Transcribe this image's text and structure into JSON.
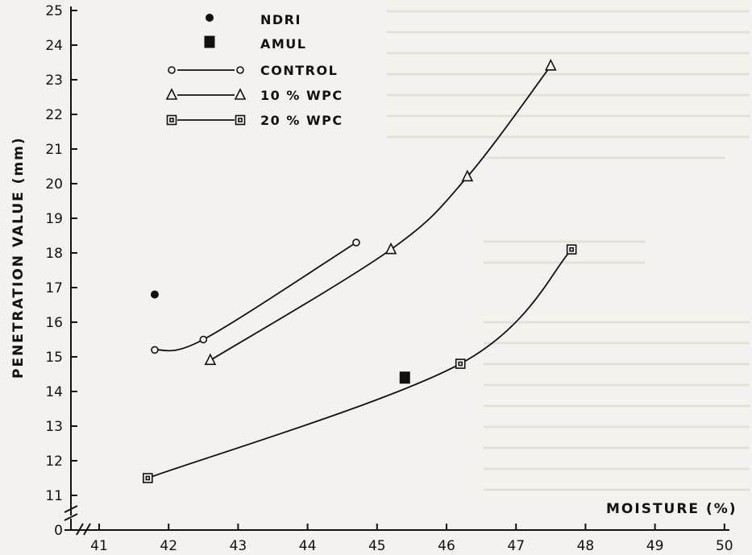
{
  "chart_data": {
    "type": "line",
    "xlabel": "MOISTURE (%)",
    "ylabel": "PENETRATION VALUE (mm)",
    "xlim": [
      41,
      50
    ],
    "ylim": [
      11,
      25
    ],
    "x_ticks": [
      "41",
      "42",
      "43",
      "44",
      "45",
      "46",
      "47",
      "48",
      "49",
      "50"
    ],
    "y_ticks": [
      "11",
      "12",
      "13",
      "14",
      "15",
      "16",
      "17",
      "18",
      "19",
      "20",
      "21",
      "22",
      "23",
      "24",
      "25"
    ],
    "y_zero_label": "0",
    "axis_break": true,
    "grid": false,
    "legend_position": "top-left",
    "series": [
      {
        "name": "NDRI",
        "marker": "filled-circle",
        "line": false,
        "points": [
          {
            "x": 41.8,
            "y": 16.8
          }
        ]
      },
      {
        "name": "AMUL",
        "marker": "filled-square",
        "line": false,
        "points": [
          {
            "x": 45.4,
            "y": 14.4
          }
        ]
      },
      {
        "name": "CONTROL",
        "marker": "open-circle",
        "line": true,
        "points": [
          {
            "x": 41.8,
            "y": 15.2
          },
          {
            "x": 42.5,
            "y": 15.5
          },
          {
            "x": 44.7,
            "y": 18.3
          }
        ]
      },
      {
        "name": "10 % WPC",
        "marker": "open-triangle",
        "line": true,
        "points": [
          {
            "x": 42.6,
            "y": 14.9
          },
          {
            "x": 45.2,
            "y": 18.1
          },
          {
            "x": 46.3,
            "y": 20.2
          },
          {
            "x": 47.5,
            "y": 23.4
          }
        ]
      },
      {
        "name": "20 % WPC",
        "marker": "open-square",
        "line": true,
        "points": [
          {
            "x": 41.7,
            "y": 11.5
          },
          {
            "x": 46.2,
            "y": 14.8
          },
          {
            "x": 47.8,
            "y": 18.1
          }
        ]
      }
    ]
  }
}
